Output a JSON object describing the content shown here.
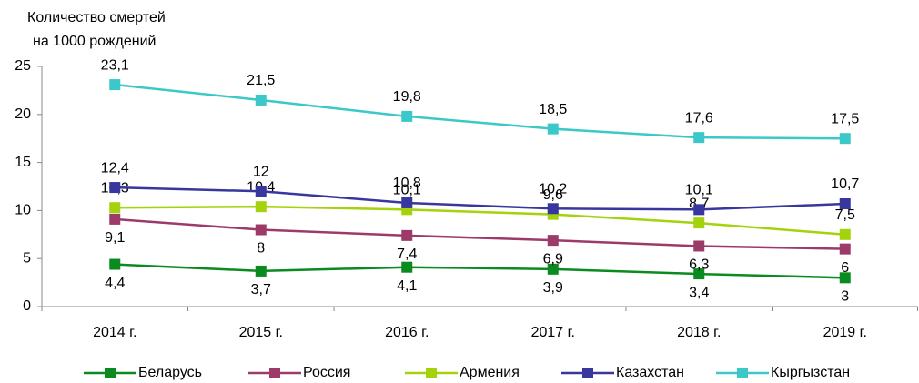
{
  "chart_data": {
    "type": "line",
    "y_label": [
      "Количество смертей",
      "на 1000 рождений"
    ],
    "categories": [
      "2014 г.",
      "2015 г.",
      "2016 г.",
      "2017 г.",
      "2018 г.",
      "2019 г."
    ],
    "ylim": [
      0,
      25
    ],
    "yticks": [
      0,
      5,
      10,
      15,
      20,
      25
    ],
    "grid": false,
    "legend": "bottom",
    "series": [
      {
        "name": "Беларусь",
        "color": "#0b8a1f",
        "label_position": "below",
        "values": [
          4.4,
          3.7,
          4.1,
          3.9,
          3.4,
          3
        ],
        "value_labels": [
          "4,4",
          "3,7",
          "4,1",
          "3,9",
          "3,4",
          "3"
        ]
      },
      {
        "name": "Россия",
        "color": "#9c3a6a",
        "label_position": "below",
        "values": [
          9.1,
          8,
          7.4,
          6.9,
          6.3,
          6
        ],
        "value_labels": [
          "9,1",
          "8",
          "7,4",
          "6,9",
          "6,3",
          "6"
        ]
      },
      {
        "name": "Армения",
        "color": "#a4d20c",
        "label_position": "above",
        "values": [
          10.3,
          10.4,
          10.1,
          9.6,
          8.7,
          7.5
        ],
        "value_labels": [
          "10,3",
          "10,4",
          "10,1",
          "9,6",
          "8,7",
          "7,5"
        ]
      },
      {
        "name": "Казахстан",
        "color": "#37379e",
        "label_position": "above",
        "values": [
          12.4,
          12,
          10.8,
          10.2,
          10.1,
          10.7
        ],
        "value_labels": [
          "12,4",
          "12",
          "10,8",
          "10,2",
          "10,1",
          "10,7"
        ]
      },
      {
        "name": "Кыргызстан",
        "color": "#3cc8c8",
        "label_position": "above",
        "values": [
          23.1,
          21.5,
          19.8,
          18.5,
          17.6,
          17.5
        ],
        "value_labels": [
          "23,1",
          "21,5",
          "19,8",
          "18,5",
          "17,6",
          "17,5"
        ]
      }
    ]
  }
}
